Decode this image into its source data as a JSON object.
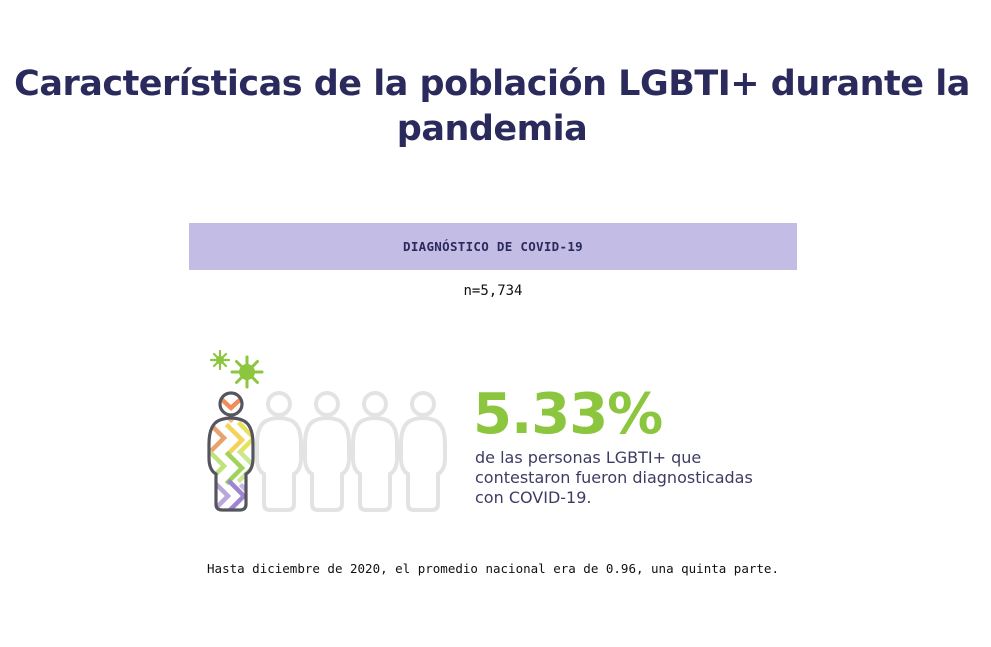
{
  "page": {
    "title": "Características de la población LGBTI+ durante la pandemia",
    "banner_label": "DIAGNÓSTICO DE COVID-19",
    "sample_size": "n=5,734"
  },
  "stat": {
    "value": "5.33%",
    "description": "de las personas LGBTI+ que contestaron fueron diagnosticadas con COVID-19."
  },
  "icons": {
    "virus": "virus-icon",
    "person_highlighted": "rainbow-person-icon",
    "person_outline": "person-outline-icon"
  },
  "colors": {
    "title": "#2b2a5c",
    "banner_bg": "#c3bde6",
    "stat_green": "#8cc63f",
    "outline_gray": "#e3e3e3",
    "figure_dark": "#55555f"
  },
  "footnote": "Hasta diciembre de 2020, el promedio nacional era de 0.96, una quinta parte."
}
